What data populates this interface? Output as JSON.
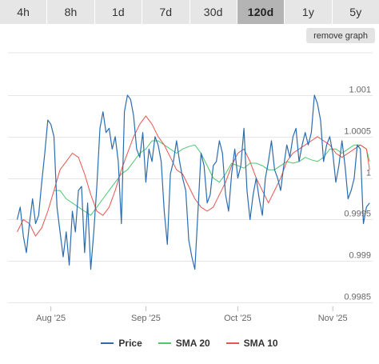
{
  "range_selector": {
    "buttons": [
      "4h",
      "8h",
      "1d",
      "7d",
      "30d",
      "120d",
      "1y",
      "5y"
    ],
    "active": "120d"
  },
  "remove_graph_label": "remove graph",
  "legend": {
    "price": "Price",
    "sma20": "SMA 20",
    "sma10": "SMA 10"
  },
  "colors": {
    "price": "#2b6cb0",
    "sma20": "#4cc870",
    "sma10": "#e8554e",
    "grid": "#e6e6e6",
    "axis_text": "#666666"
  },
  "chart_data": {
    "type": "line",
    "title": "",
    "xlabel": "",
    "ylabel": "",
    "ylim": [
      0.9985,
      1.001
    ],
    "yticks": [
      0.9985,
      0.999,
      0.9995,
      1,
      1.0005,
      1.001
    ],
    "ytick_labels": [
      "0.9985",
      "0.999",
      "0.9995",
      "1",
      "1.0005",
      "1.001"
    ],
    "xlim": [
      "2025-07-18",
      "2025-11-14"
    ],
    "xticks": [
      "2025-08-01",
      "2025-09-01",
      "2025-10-01",
      "2025-11-01"
    ],
    "xtick_labels": [
      "Aug '25",
      "Sep '25",
      "Oct '25",
      "Nov '25"
    ],
    "grid": true,
    "legend_position": "bottom",
    "series": [
      {
        "name": "Price",
        "x": [
          "2025-07-21",
          "2025-07-22",
          "2025-07-23",
          "2025-07-24",
          "2025-07-25",
          "2025-07-26",
          "2025-07-27",
          "2025-07-28",
          "2025-07-29",
          "2025-07-30",
          "2025-07-31",
          "2025-08-01",
          "2025-08-02",
          "2025-08-03",
          "2025-08-04",
          "2025-08-05",
          "2025-08-06",
          "2025-08-07",
          "2025-08-08",
          "2025-08-09",
          "2025-08-10",
          "2025-08-11",
          "2025-08-12",
          "2025-08-13",
          "2025-08-14",
          "2025-08-15",
          "2025-08-16",
          "2025-08-17",
          "2025-08-18",
          "2025-08-19",
          "2025-08-20",
          "2025-08-21",
          "2025-08-22",
          "2025-08-23",
          "2025-08-24",
          "2025-08-25",
          "2025-08-26",
          "2025-08-27",
          "2025-08-28",
          "2025-08-29",
          "2025-08-30",
          "2025-08-31",
          "2025-09-01",
          "2025-09-02",
          "2025-09-03",
          "2025-09-04",
          "2025-09-05",
          "2025-09-06",
          "2025-09-07",
          "2025-09-08",
          "2025-09-09",
          "2025-09-10",
          "2025-09-11",
          "2025-09-12",
          "2025-09-13",
          "2025-09-14",
          "2025-09-15",
          "2025-09-16",
          "2025-09-17",
          "2025-09-18",
          "2025-09-19",
          "2025-09-20",
          "2025-09-21",
          "2025-09-22",
          "2025-09-23",
          "2025-09-24",
          "2025-09-25",
          "2025-09-26",
          "2025-09-27",
          "2025-09-28",
          "2025-09-29",
          "2025-09-30",
          "2025-10-01",
          "2025-10-02",
          "2025-10-03",
          "2025-10-04",
          "2025-10-05",
          "2025-10-06",
          "2025-10-07",
          "2025-10-08",
          "2025-10-09",
          "2025-10-10",
          "2025-10-11",
          "2025-10-12",
          "2025-10-13",
          "2025-10-14",
          "2025-10-15",
          "2025-10-16",
          "2025-10-17",
          "2025-10-18",
          "2025-10-19",
          "2025-10-20",
          "2025-10-21",
          "2025-10-22",
          "2025-10-23",
          "2025-10-24",
          "2025-10-25",
          "2025-10-26",
          "2025-10-27",
          "2025-10-28",
          "2025-10-29",
          "2025-10-30",
          "2025-10-31",
          "2025-11-01",
          "2025-11-02",
          "2025-11-03",
          "2025-11-04",
          "2025-11-05",
          "2025-11-06",
          "2025-11-07",
          "2025-11-08",
          "2025-11-09",
          "2025-11-10",
          "2025-11-11",
          "2025-11-12",
          "2025-11-13"
        ],
        "y": [
          0.9995,
          0.99965,
          0.9993,
          0.9991,
          0.99945,
          0.99975,
          0.99945,
          0.99955,
          0.99995,
          1.0003,
          1.0007,
          1.00065,
          1.0005,
          0.99965,
          0.99935,
          0.99905,
          0.99935,
          0.99895,
          0.9996,
          0.99935,
          0.99985,
          0.9999,
          0.9991,
          0.9997,
          0.9989,
          0.99935,
          0.9999,
          1.0006,
          1.0008,
          1.00055,
          1.0006,
          1.00035,
          1.0005,
          1.0002,
          0.99945,
          1.0008,
          1.001,
          1.00095,
          1.00075,
          1.00035,
          1.00025,
          1.00055,
          0.99995,
          1.00035,
          1.0002,
          1.0005,
          1.0004,
          1.0002,
          0.9996,
          0.9992,
          1.00005,
          1.0002,
          1.00045,
          1.0002,
          1.0,
          0.99985,
          0.99925,
          0.99905,
          0.9989,
          0.9996,
          1.0003,
          1.00015,
          0.9997,
          0.9998,
          1.00015,
          1.0002,
          1.00045,
          1.0003,
          0.9998,
          0.9996,
          1.00005,
          1.00035,
          1.0,
          1.00015,
          1.0006,
          0.99985,
          0.9995,
          0.9998,
          1.0,
          0.99975,
          0.99955,
          1.0,
          1.0002,
          1.00045,
          1.0001,
          1.0,
          0.99985,
          1.00015,
          1.0004,
          1.00025,
          1.0005,
          1.0006,
          1.0002,
          1.0004,
          1.00055,
          1.0004,
          1.00055,
          1.001,
          1.0009,
          1.0007,
          1.0002,
          1.0004,
          1.0005,
          1.0003,
          0.99995,
          1.00015,
          1.00045,
          1.00015,
          0.99975,
          0.99985,
          1.0,
          1.0004,
          1.00035,
          0.99945,
          0.99965,
          0.9997
        ]
      },
      {
        "name": "SMA 20",
        "x": [
          "2025-08-02",
          "2025-08-04",
          "2025-08-06",
          "2025-08-08",
          "2025-08-10",
          "2025-08-12",
          "2025-08-14",
          "2025-08-16",
          "2025-08-18",
          "2025-08-20",
          "2025-08-22",
          "2025-08-24",
          "2025-08-26",
          "2025-08-28",
          "2025-08-30",
          "2025-09-01",
          "2025-09-03",
          "2025-09-05",
          "2025-09-07",
          "2025-09-09",
          "2025-09-11",
          "2025-09-13",
          "2025-09-15",
          "2025-09-17",
          "2025-09-19",
          "2025-09-21",
          "2025-09-23",
          "2025-09-25",
          "2025-09-27",
          "2025-09-29",
          "2025-10-01",
          "2025-10-03",
          "2025-10-05",
          "2025-10-07",
          "2025-10-09",
          "2025-10-11",
          "2025-10-13",
          "2025-10-15",
          "2025-10-17",
          "2025-10-19",
          "2025-10-21",
          "2025-10-23",
          "2025-10-25",
          "2025-10-27",
          "2025-10-29",
          "2025-10-31",
          "2025-11-02",
          "2025-11-04",
          "2025-11-06",
          "2025-11-08",
          "2025-11-10",
          "2025-11-12",
          "2025-11-13"
        ],
        "y": [
          0.99985,
          0.99985,
          0.99975,
          0.9997,
          0.99965,
          0.9996,
          0.99955,
          0.99965,
          0.99975,
          0.99985,
          0.99995,
          1.00005,
          1.0001,
          1.0002,
          1.0003,
          1.00035,
          1.00045,
          1.00045,
          1.0004,
          1.00035,
          1.0003,
          1.00035,
          1.00038,
          1.0004,
          1.0003,
          1.00015,
          1.0,
          0.99995,
          1.00005,
          1.00018,
          1.00015,
          1.00012,
          1.00018,
          1.00018,
          1.00015,
          1.0001,
          1.0001,
          1.00015,
          1.0002,
          1.00018,
          1.0002,
          1.00025,
          1.00022,
          1.0002,
          1.00025,
          1.00035,
          1.00035,
          1.0003,
          1.00035,
          1.0004,
          1.0004,
          1.00035,
          1.0002
        ]
      },
      {
        "name": "SMA 10",
        "x": [
          "2025-07-21",
          "2025-07-23",
          "2025-07-25",
          "2025-07-27",
          "2025-07-29",
          "2025-07-31",
          "2025-08-02",
          "2025-08-04",
          "2025-08-06",
          "2025-08-08",
          "2025-08-10",
          "2025-08-12",
          "2025-08-14",
          "2025-08-16",
          "2025-08-18",
          "2025-08-20",
          "2025-08-22",
          "2025-08-24",
          "2025-08-26",
          "2025-08-28",
          "2025-08-30",
          "2025-09-01",
          "2025-09-03",
          "2025-09-05",
          "2025-09-07",
          "2025-09-09",
          "2025-09-11",
          "2025-09-13",
          "2025-09-15",
          "2025-09-17",
          "2025-09-19",
          "2025-09-21",
          "2025-09-23",
          "2025-09-25",
          "2025-09-27",
          "2025-09-29",
          "2025-10-01",
          "2025-10-03",
          "2025-10-05",
          "2025-10-07",
          "2025-10-09",
          "2025-10-11",
          "2025-10-13",
          "2025-10-15",
          "2025-10-17",
          "2025-10-19",
          "2025-10-21",
          "2025-10-23",
          "2025-10-25",
          "2025-10-27",
          "2025-10-29",
          "2025-10-31",
          "2025-11-02",
          "2025-11-04",
          "2025-11-06",
          "2025-11-08",
          "2025-11-10",
          "2025-11-12",
          "2025-11-13"
        ],
        "y": [
          0.99935,
          0.9995,
          0.99945,
          0.9993,
          0.9994,
          0.9996,
          0.99985,
          1.0001,
          1.0002,
          1.0003,
          1.00025,
          1.00005,
          0.9998,
          0.9996,
          0.99955,
          0.99965,
          0.99985,
          1.0001,
          1.0003,
          1.0005,
          1.00065,
          1.00075,
          1.00065,
          1.0005,
          1.0004,
          1.00025,
          1.0001,
          1.00005,
          0.9999,
          0.99975,
          0.99965,
          0.9996,
          0.99965,
          0.9998,
          0.99995,
          1.00015,
          1.0003,
          1.00035,
          1.0002,
          1.0,
          0.99985,
          0.9997,
          0.99985,
          1.0,
          1.0002,
          1.0003,
          1.00035,
          1.0004,
          1.00045,
          1.0005,
          1.00045,
          1.0004,
          1.0003,
          1.00025,
          1.0003,
          1.00035,
          1.0004,
          1.00035,
          1.0001
        ]
      }
    ]
  }
}
